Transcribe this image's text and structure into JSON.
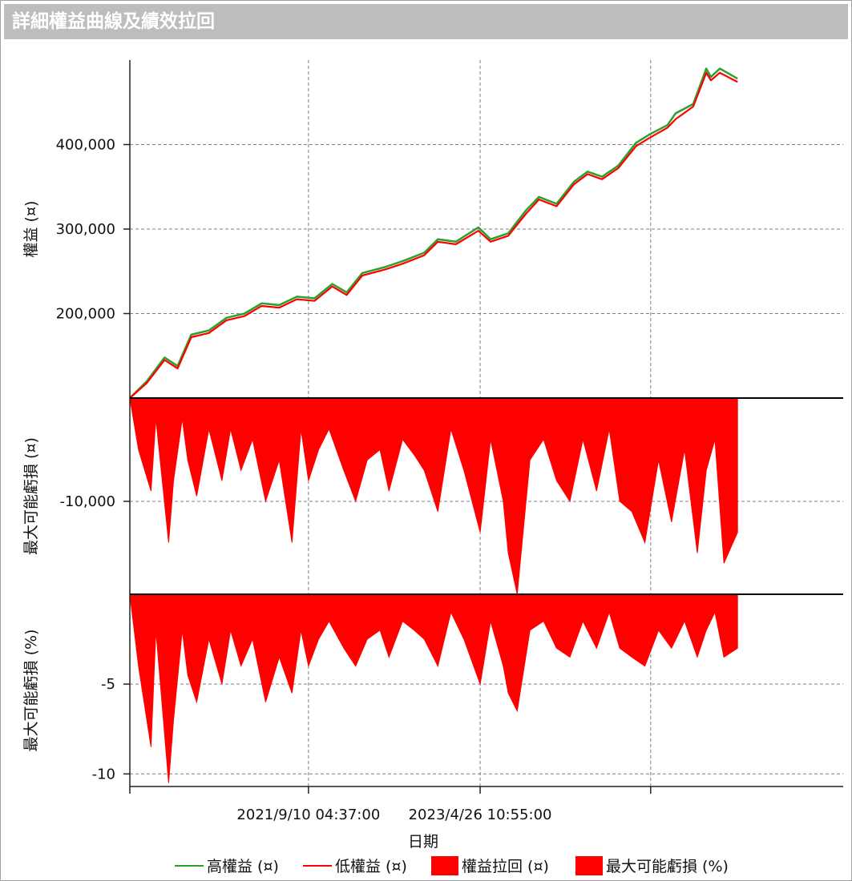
{
  "window": {
    "title": "詳細權益曲線及績效拉回"
  },
  "chart_data": {
    "type": "line",
    "xlabel": "日期",
    "x_ticks": [
      "2021/9/10 04:37:00",
      "2023/4/26 10:55:00"
    ],
    "x_domain": [
      "2020-01-02",
      "2026-10-01"
    ],
    "grid": true,
    "legend_position": "bottom",
    "colors": {
      "high": "#2ca02c",
      "low": "#ff0000",
      "fill": "#ff0000",
      "grid": "#7f7f7f"
    },
    "legend": [
      {
        "label": "高權益 (¤)",
        "kind": "line",
        "color": "#2ca02c"
      },
      {
        "label": "低權益 (¤)",
        "kind": "line",
        "color": "#ff0000"
      },
      {
        "label": "權益拉回 (¤)",
        "kind": "box",
        "color": "#ff0000"
      },
      {
        "label": "最大可能虧損 (%)",
        "kind": "box",
        "color": "#ff0000"
      }
    ],
    "panels": [
      {
        "name": "equity",
        "ylabel": "權益 (¤)",
        "ylim": [
          100000,
          500000
        ],
        "ticks": [
          200000,
          300000,
          400000
        ],
        "tick_labels": [
          "200,000",
          "300,000",
          "400,000"
        ],
        "series": [
          {
            "name": "高權益 (¤)",
            "x": [
              "2020-01-02",
              "2020-03-01",
              "2020-05-01",
              "2020-06-15",
              "2020-08-01",
              "2020-10-01",
              "2020-12-01",
              "2021-02-01",
              "2021-04-01",
              "2021-06-01",
              "2021-08-01",
              "2021-10-01",
              "2021-12-01",
              "2022-01-20",
              "2022-03-15",
              "2022-06-01",
              "2022-08-01",
              "2022-10-15",
              "2022-12-01",
              "2023-02-01",
              "2023-04-20",
              "2023-06-01",
              "2023-08-01",
              "2023-10-01",
              "2023-11-15",
              "2024-01-15",
              "2024-03-15",
              "2024-05-01",
              "2024-06-20",
              "2024-08-15",
              "2024-10-15",
              "2024-12-01",
              "2025-02-01",
              "2025-03-01",
              "2025-05-01",
              "2025-06-15",
              "2025-07-01",
              "2025-08-01",
              "2025-10-01"
            ],
            "values": [
              100000,
              120000,
              148000,
              138000,
              175000,
              180000,
              195000,
              200000,
              212000,
              210000,
              220000,
              218000,
              235000,
              225000,
              248000,
              255000,
              262000,
              272000,
              288000,
              285000,
              302000,
              288000,
              295000,
              322000,
              338000,
              330000,
              356000,
              368000,
              362000,
              375000,
              402000,
              412000,
              423000,
              437000,
              448000,
              490000,
              480000,
              490000,
              478000
            ]
          },
          {
            "name": "低權益 (¤)",
            "x": [
              "2020-01-02",
              "2020-03-01",
              "2020-05-01",
              "2020-06-15",
              "2020-08-01",
              "2020-10-01",
              "2020-12-01",
              "2021-02-01",
              "2021-04-01",
              "2021-06-01",
              "2021-08-01",
              "2021-10-01",
              "2021-12-01",
              "2022-01-20",
              "2022-03-15",
              "2022-06-01",
              "2022-08-01",
              "2022-10-15",
              "2022-12-01",
              "2023-02-01",
              "2023-04-20",
              "2023-06-01",
              "2023-08-01",
              "2023-10-01",
              "2023-11-15",
              "2024-01-15",
              "2024-03-15",
              "2024-05-01",
              "2024-06-20",
              "2024-08-15",
              "2024-10-15",
              "2024-12-01",
              "2025-02-01",
              "2025-03-01",
              "2025-05-01",
              "2025-06-15",
              "2025-07-01",
              "2025-08-01",
              "2025-10-01"
            ],
            "values": [
              100000,
              118000,
              145000,
              135000,
              172000,
              177000,
              192000,
              197000,
              209000,
              207000,
              217000,
              215000,
              232000,
              222000,
              245000,
              252000,
              259000,
              269000,
              285000,
              282000,
              298000,
              285000,
              292000,
              318000,
              335000,
              327000,
              353000,
              365000,
              359000,
              372000,
              398000,
              408000,
              420000,
              430000,
              445000,
              485000,
              476000,
              485000,
              474000
            ]
          }
        ]
      },
      {
        "name": "drawdown",
        "ylabel": "最大可能虧損 (¤)",
        "ylim": [
          -19000,
          0
        ],
        "ticks": [
          -10000
        ],
        "tick_labels": [
          "-10,000"
        ],
        "series": [
          {
            "name": "權益拉回 (¤)",
            "x": [
              "2020-01-02",
              "2020-02-01",
              "2020-03-15",
              "2020-04-01",
              "2020-05-15",
              "2020-06-01",
              "2020-07-01",
              "2020-07-20",
              "2020-08-20",
              "2020-10-01",
              "2020-11-15",
              "2020-12-15",
              "2021-01-20",
              "2021-03-01",
              "2021-04-15",
              "2021-06-01",
              "2021-07-15",
              "2021-08-15",
              "2021-09-10",
              "2021-10-15",
              "2021-11-20",
              "2022-01-10",
              "2022-02-20",
              "2022-04-01",
              "2022-05-15",
              "2022-06-15",
              "2022-08-01",
              "2022-09-10",
              "2022-10-15",
              "2022-12-01",
              "2023-01-15",
              "2023-03-01",
              "2023-04-26",
              "2023-06-01",
              "2023-07-15",
              "2023-08-01",
              "2023-09-01",
              "2023-10-15",
              "2023-12-01",
              "2024-01-15",
              "2024-03-01",
              "2024-04-15",
              "2024-06-01",
              "2024-07-15",
              "2024-08-20",
              "2024-10-01",
              "2024-11-15",
              "2025-01-01",
              "2025-02-15",
              "2025-04-01",
              "2025-05-15",
              "2025-06-15",
              "2025-07-15",
              "2025-08-15",
              "2025-10-01"
            ],
            "values": [
              0,
              -5000,
              -9000,
              -2000,
              -14000,
              -8000,
              -2000,
              -6000,
              -9500,
              -3000,
              -8000,
              -3000,
              -7000,
              -4000,
              -10000,
              -6000,
              -14000,
              -3000,
              -8000,
              -5000,
              -3000,
              -7000,
              -10000,
              -6000,
              -5000,
              -9000,
              -4000,
              -5500,
              -7000,
              -11000,
              -3000,
              -7000,
              -13000,
              -4000,
              -10000,
              -15000,
              -19000,
              -6000,
              -4000,
              -8000,
              -10000,
              -4000,
              -9000,
              -3000,
              -10000,
              -11000,
              -14000,
              -6000,
              -12000,
              -5000,
              -15000,
              -7000,
              -4000,
              -16000,
              -13000
            ]
          }
        ]
      },
      {
        "name": "drawdown-pct",
        "ylabel": "最大可能虧損 (%)",
        "ylim": [
          -10.7,
          0
        ],
        "ticks": [
          -5,
          -10
        ],
        "tick_labels": [
          "-5",
          "-10"
        ],
        "series": [
          {
            "name": "最大可能虧損 (%)",
            "x": [
              "2020-01-02",
              "2020-02-01",
              "2020-03-15",
              "2020-04-01",
              "2020-05-15",
              "2020-06-01",
              "2020-07-01",
              "2020-07-20",
              "2020-08-20",
              "2020-10-01",
              "2020-11-15",
              "2020-12-15",
              "2021-01-20",
              "2021-03-01",
              "2021-04-15",
              "2021-06-01",
              "2021-07-15",
              "2021-08-15",
              "2021-09-10",
              "2021-10-15",
              "2021-11-20",
              "2022-01-10",
              "2022-02-20",
              "2022-04-01",
              "2022-05-15",
              "2022-06-15",
              "2022-08-01",
              "2022-09-10",
              "2022-10-15",
              "2022-12-01",
              "2023-01-15",
              "2023-03-01",
              "2023-04-26",
              "2023-06-01",
              "2023-07-15",
              "2023-08-01",
              "2023-09-01",
              "2023-10-15",
              "2023-12-01",
              "2024-01-15",
              "2024-03-01",
              "2024-04-15",
              "2024-06-01",
              "2024-07-15",
              "2024-08-20",
              "2024-10-01",
              "2024-11-15",
              "2025-01-01",
              "2025-02-15",
              "2025-04-01",
              "2025-05-15",
              "2025-06-15",
              "2025-07-15",
              "2025-08-15",
              "2025-10-01"
            ],
            "values": [
              0,
              -4,
              -8.5,
              -2,
              -10.5,
              -7,
              -2,
              -4.5,
              -6,
              -2.5,
              -5,
              -2,
              -4,
              -2.5,
              -6,
              -3.5,
              -5.5,
              -2,
              -4,
              -2.5,
              -1.5,
              -3,
              -4,
              -2.5,
              -2,
              -3.5,
              -1.5,
              -2,
              -2.5,
              -4,
              -1,
              -2.5,
              -5,
              -1.5,
              -4,
              -5.5,
              -6.5,
              -2,
              -1.5,
              -3,
              -3.5,
              -1.5,
              -3,
              -1,
              -3,
              -3.5,
              -4,
              -2,
              -3,
              -1.5,
              -3.5,
              -2,
              -1,
              -3.5,
              -3
            ]
          }
        ]
      }
    ]
  }
}
